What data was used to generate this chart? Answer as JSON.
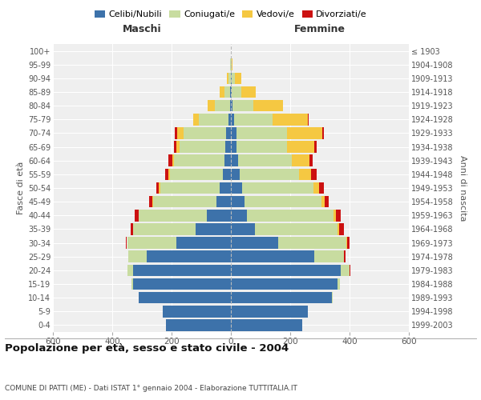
{
  "age_groups": [
    "0-4",
    "5-9",
    "10-14",
    "15-19",
    "20-24",
    "25-29",
    "30-34",
    "35-39",
    "40-44",
    "45-49",
    "50-54",
    "55-59",
    "60-64",
    "65-69",
    "70-74",
    "75-79",
    "80-84",
    "85-89",
    "90-94",
    "95-99",
    "100+"
  ],
  "birth_years": [
    "1999-2003",
    "1994-1998",
    "1989-1993",
    "1984-1988",
    "1979-1983",
    "1974-1978",
    "1969-1973",
    "1964-1968",
    "1959-1963",
    "1954-1958",
    "1949-1953",
    "1944-1948",
    "1939-1943",
    "1934-1938",
    "1929-1933",
    "1924-1928",
    "1919-1923",
    "1914-1918",
    "1909-1913",
    "1904-1908",
    "≤ 1903"
  ],
  "males": {
    "celibe": [
      220,
      230,
      310,
      330,
      330,
      285,
      185,
      120,
      80,
      48,
      38,
      28,
      22,
      18,
      15,
      8,
      4,
      2,
      1,
      0,
      0
    ],
    "coniugato": [
      0,
      0,
      2,
      5,
      18,
      60,
      165,
      210,
      230,
      215,
      200,
      178,
      170,
      155,
      145,
      100,
      50,
      20,
      8,
      2,
      0
    ],
    "vedovo": [
      0,
      0,
      0,
      0,
      0,
      0,
      1,
      1,
      2,
      2,
      4,
      5,
      6,
      10,
      20,
      20,
      25,
      15,
      5,
      1,
      0
    ],
    "divorziato": [
      0,
      0,
      0,
      0,
      1,
      2,
      4,
      8,
      12,
      10,
      10,
      10,
      12,
      10,
      8,
      0,
      0,
      0,
      0,
      0,
      0
    ]
  },
  "females": {
    "nubile": [
      240,
      260,
      340,
      360,
      370,
      280,
      160,
      80,
      55,
      45,
      38,
      30,
      25,
      20,
      18,
      10,
      6,
      4,
      2,
      1,
      0
    ],
    "coniugata": [
      0,
      0,
      2,
      8,
      30,
      100,
      230,
      280,
      290,
      260,
      240,
      200,
      180,
      170,
      170,
      130,
      70,
      30,
      12,
      2,
      0
    ],
    "vedova": [
      0,
      0,
      0,
      0,
      1,
      2,
      3,
      5,
      8,
      12,
      20,
      40,
      60,
      90,
      120,
      120,
      100,
      50,
      20,
      3,
      0
    ],
    "divorziata": [
      0,
      0,
      0,
      0,
      1,
      4,
      8,
      15,
      18,
      12,
      15,
      18,
      12,
      8,
      5,
      2,
      0,
      0,
      0,
      0,
      0
    ]
  },
  "colors": {
    "celibe": "#3d72aa",
    "coniugato": "#c8dca0",
    "vedovo": "#f5c842",
    "divorziato": "#cc1111"
  },
  "xlim": 600,
  "title": "Popolazione per età, sesso e stato civile - 2004",
  "subtitle": "COMUNE DI PATTI (ME) - Dati ISTAT 1° gennaio 2004 - Elaborazione TUTTITALIA.IT",
  "xlabel_left": "Maschi",
  "xlabel_right": "Femmine",
  "ylabel_left": "Fasce di età",
  "ylabel_right": "Anni di nascita",
  "legend_labels": [
    "Celibi/Nubili",
    "Coniugati/e",
    "Vedovi/e",
    "Divorziati/e"
  ]
}
